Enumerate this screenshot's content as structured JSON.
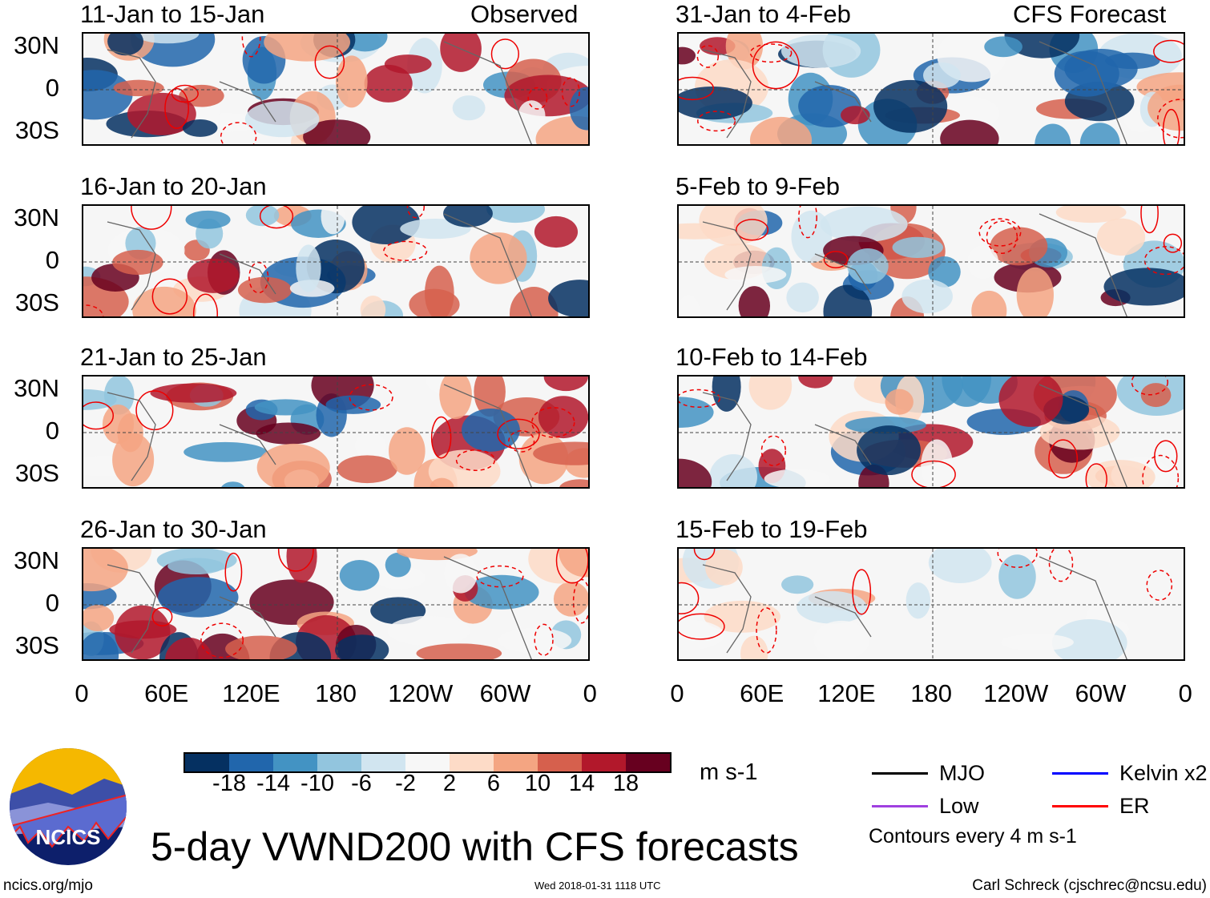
{
  "left_label": "Observed",
  "right_label": "CFS Forecast",
  "observed_panels": [
    "11-Jan to 15-Jan",
    "16-Jan to 20-Jan",
    "21-Jan to 25-Jan",
    "26-Jan to 30-Jan"
  ],
  "forecast_panels": [
    "31-Jan to 4-Feb",
    "5-Feb to 9-Feb",
    "10-Feb to 14-Feb",
    "15-Feb to 19-Feb"
  ],
  "lat_ticks": [
    "30N",
    "0",
    "30S"
  ],
  "lon_ticks": [
    "0",
    "60E",
    "120E",
    "180",
    "120W",
    "60W",
    "0"
  ],
  "colorbar": {
    "colors": [
      "#053061",
      "#2166ac",
      "#4393c3",
      "#92c5de",
      "#d1e5f0",
      "#f7f7f7",
      "#fddbc7",
      "#f4a582",
      "#d6604d",
      "#b2182b",
      "#67001f"
    ],
    "labels": [
      "-18",
      "-14",
      "-10",
      "-6",
      "-2",
      "2",
      "6",
      "10",
      "14",
      "18"
    ],
    "units": "m s-1"
  },
  "legend": {
    "items": [
      {
        "label": "MJO",
        "color": "#000000"
      },
      {
        "label": "Kelvin x2",
        "color": "#0000ff"
      },
      {
        "label": "Low",
        "color": "#a040e0"
      },
      {
        "label": "ER",
        "color": "#ff0000"
      }
    ],
    "note": "Contours every 4 m s-1"
  },
  "logo_text": "NCICS",
  "title": "5-day VWND200 with CFS forecasts",
  "footer": {
    "url": "ncics.org/mjo",
    "timestamp": "Wed 2018-01-31 1118 UTC",
    "author": "Carl Schreck (cjschrec@ncsu.edu)"
  }
}
